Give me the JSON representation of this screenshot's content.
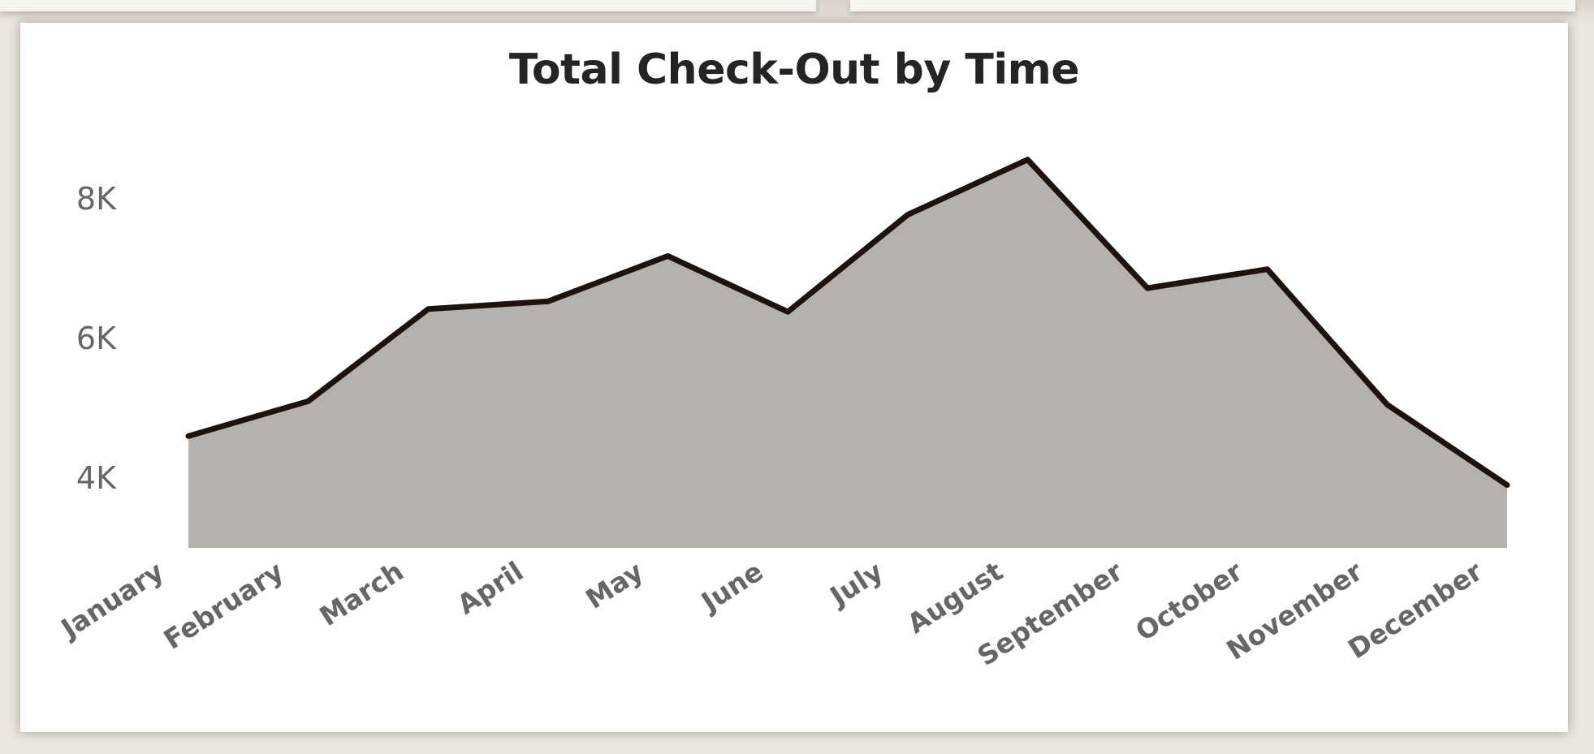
{
  "chart_data": {
    "type": "area",
    "title": "Total Check-Out by Time",
    "xlabel": "",
    "ylabel": "",
    "categories": [
      "January",
      "February",
      "March",
      "April",
      "May",
      "June",
      "July",
      "August",
      "September",
      "October",
      "November",
      "December"
    ],
    "series": [
      {
        "values": [
          4600,
          5100,
          6420,
          6530,
          7180,
          6380,
          7770,
          8560,
          6720,
          6990,
          5050,
          3900
        ]
      }
    ],
    "yticks": [
      4000,
      6000,
      8000
    ],
    "ytick_labels": [
      "4K",
      "6K",
      "8K"
    ],
    "ylim": [
      3000,
      9300
    ],
    "grid": false,
    "legend": "none",
    "colors": {
      "area_fill": "#b5b2ad",
      "line": "#1e120e",
      "title": "#252423",
      "tick_text": "#666666"
    }
  }
}
